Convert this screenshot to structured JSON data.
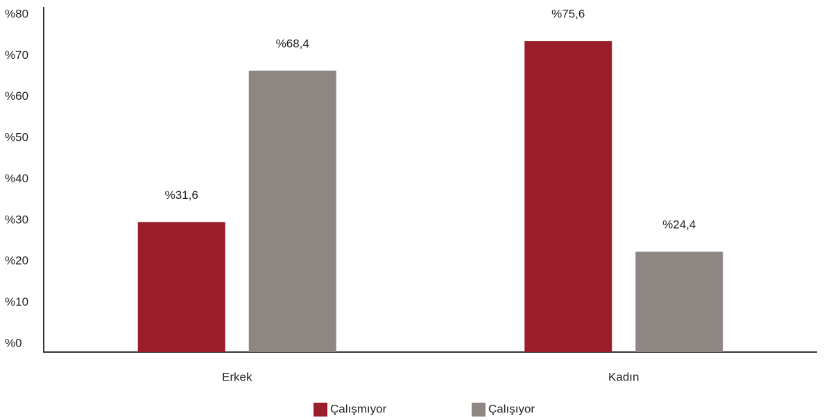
{
  "chart_data": {
    "type": "bar",
    "categories": [
      "Erkek",
      "Kadın"
    ],
    "series": [
      {
        "name": "Çalışmıyor",
        "color": "#9a1d2a",
        "values": [
          31.6,
          75.6
        ],
        "value_labels": [
          "%31,6",
          "%75,6"
        ]
      },
      {
        "name": "Çalışıyor",
        "color": "#8e8683",
        "values": [
          68.4,
          24.4
        ],
        "value_labels": [
          "%68,4",
          "%24,4"
        ]
      }
    ],
    "ylim": [
      0,
      80
    ],
    "yticks": [
      {
        "value": 0,
        "label": "%0"
      },
      {
        "value": 10,
        "label": "%10"
      },
      {
        "value": 20,
        "label": "%20"
      },
      {
        "value": 30,
        "label": "%30"
      },
      {
        "value": 40,
        "label": "%40"
      },
      {
        "value": 50,
        "label": "%50"
      },
      {
        "value": 60,
        "label": "%60"
      },
      {
        "value": 70,
        "label": "%70"
      },
      {
        "value": 80,
        "label": "%80"
      }
    ],
    "legend": "bottom"
  }
}
